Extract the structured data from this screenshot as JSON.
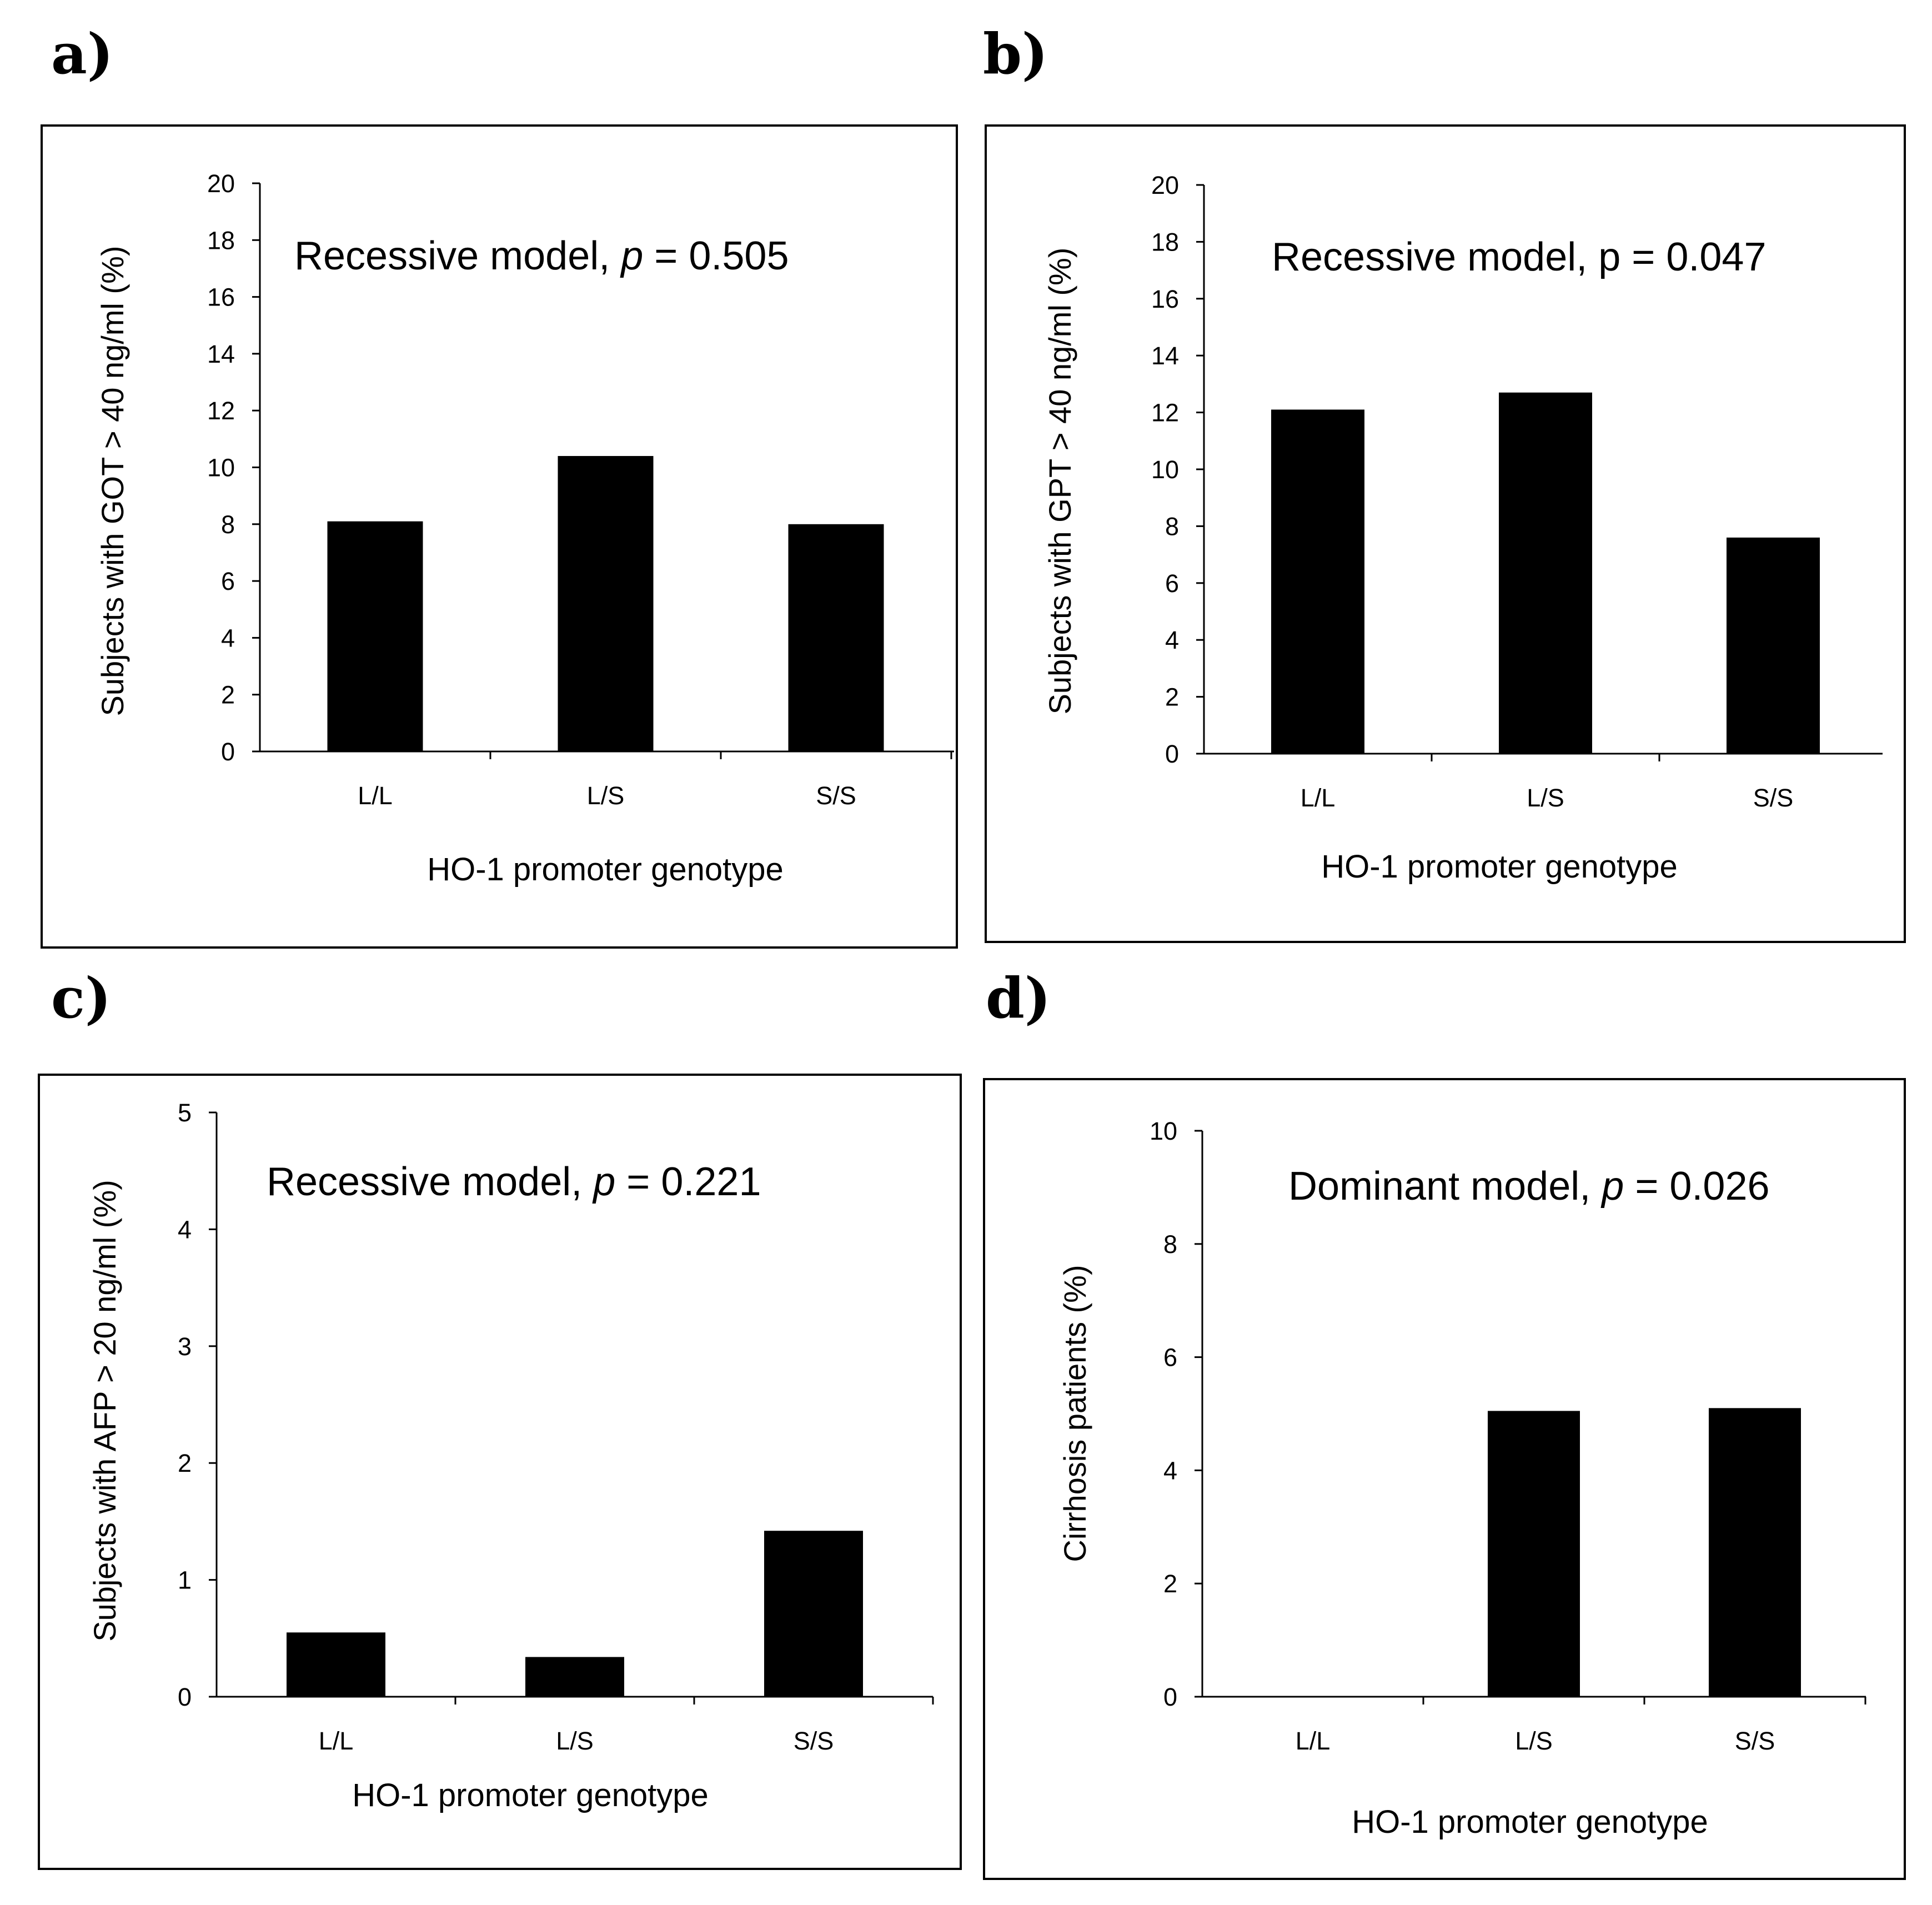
{
  "chart_data": [
    {
      "panel": "a)",
      "type": "bar",
      "categories": [
        "L/L",
        "L/S",
        "S/S"
      ],
      "values": [
        8.1,
        10.4,
        8.0
      ],
      "ylim": [
        0,
        20
      ],
      "yticks": [
        "0",
        "2",
        "4",
        "6",
        "8",
        "10",
        "12",
        "14",
        "16",
        "18",
        "20"
      ],
      "xlabel": "HO-1 promoter genotype",
      "ylabel": "Subjects with GOT > 40 ng/ml (%)",
      "annotation": {
        "text": "Recessive model, ",
        "p": "p",
        "value": " = 0.505"
      }
    },
    {
      "panel": "b)",
      "type": "bar",
      "categories": [
        "L/L",
        "L/S",
        "S/S"
      ],
      "values": [
        12.1,
        12.7,
        7.6
      ],
      "ylim": [
        0,
        20
      ],
      "yticks": [
        "0",
        "2",
        "4",
        "6",
        "8",
        "10",
        "12",
        "14",
        "16",
        "18",
        "20"
      ],
      "xlabel": "HO-1 promoter genotype",
      "ylabel": "Subjects with GPT > 40 ng/ml (%)",
      "annotation": {
        "text": "Recessive model, ",
        "p": "p",
        "value": " = 0.047"
      }
    },
    {
      "panel": "c)",
      "type": "bar",
      "categories": [
        "L/L",
        "L/S",
        "S/S"
      ],
      "values": [
        0.55,
        0.34,
        1.42
      ],
      "ylim": [
        0,
        5
      ],
      "yticks": [
        "0",
        "1",
        "2",
        "3",
        "4",
        "5"
      ],
      "xlabel": "HO-1 promoter genotype",
      "ylabel": "Subjects with AFP > 20 ng/ml (%)",
      "annotation": {
        "text": "Recessive model, ",
        "p": "p",
        "value": " = 0.221"
      }
    },
    {
      "panel": "d)",
      "type": "bar",
      "categories": [
        "L/L",
        "L/S",
        "S/S"
      ],
      "values": [
        0,
        5.05,
        5.1
      ],
      "ylim": [
        0,
        10
      ],
      "yticks": [
        "0",
        "2",
        "4",
        "6",
        "8",
        "10"
      ],
      "xlabel": "HO-1 promoter genotype",
      "ylabel": "Cirrhosis  patients (%)",
      "ylabel_color": "#b35a10",
      "annotation": {
        "text": "Dominant model, ",
        "p": "p",
        "value": " = 0.026"
      }
    }
  ]
}
